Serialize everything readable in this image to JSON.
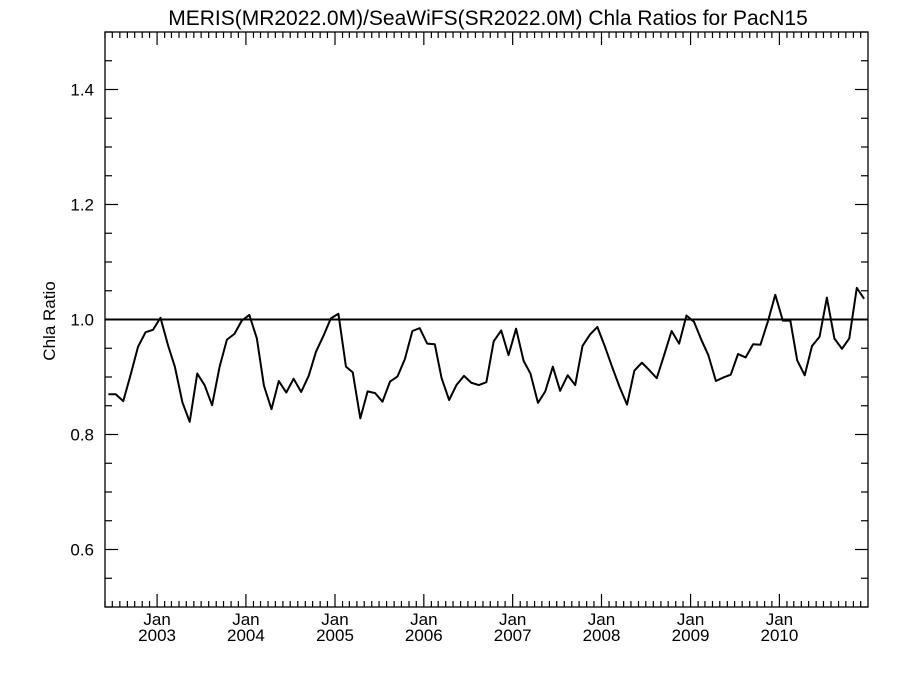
{
  "chart_data": {
    "type": "line",
    "title": "MERIS(MR2022.0M)/SeaWiFS(SR2022.0M)  Chla Ratios for PacN15",
    "xlabel": "",
    "ylabel": "Chla Ratio",
    "xlim": [
      "2002-06-01",
      "2010-12-31"
    ],
    "ylim": [
      0.5,
      1.5
    ],
    "y_ticks": [
      0.6,
      0.8,
      1.0,
      1.2,
      1.4
    ],
    "y_tick_labels": [
      "0.6",
      "0.8",
      "1.0",
      "1.2",
      "1.4"
    ],
    "x_ticks": [
      {
        "date": "2003-01-01",
        "month": "Jan",
        "year": "2003"
      },
      {
        "date": "2004-01-01",
        "month": "Jan",
        "year": "2004"
      },
      {
        "date": "2005-01-01",
        "month": "Jan",
        "year": "2005"
      },
      {
        "date": "2006-01-01",
        "month": "Jan",
        "year": "2006"
      },
      {
        "date": "2007-01-01",
        "month": "Jan",
        "year": "2007"
      },
      {
        "date": "2008-01-01",
        "month": "Jan",
        "year": "2008"
      },
      {
        "date": "2009-01-01",
        "month": "Jan",
        "year": "2009"
      },
      {
        "date": "2010-01-01",
        "month": "Jan",
        "year": "2010"
      }
    ],
    "reference_line": 1.0,
    "grid": false,
    "series": [
      {
        "color": "#000000",
        "x": [
          "2002-06",
          "2002-07",
          "2002-08",
          "2002-09",
          "2002-10",
          "2002-11",
          "2002-12",
          "2003-01",
          "2003-02",
          "2003-03",
          "2003-04",
          "2003-05",
          "2003-06",
          "2003-07",
          "2003-08",
          "2003-09",
          "2003-10",
          "2003-11",
          "2003-12",
          "2004-01",
          "2004-02",
          "2004-03",
          "2004-04",
          "2004-05",
          "2004-06",
          "2004-07",
          "2004-08",
          "2004-09",
          "2004-10",
          "2004-11",
          "2004-12",
          "2005-01",
          "2005-02",
          "2005-03",
          "2005-04",
          "2005-05",
          "2005-06",
          "2005-07",
          "2005-08",
          "2005-09",
          "2005-10",
          "2005-11",
          "2005-12",
          "2006-01",
          "2006-02",
          "2006-03",
          "2006-04",
          "2006-05",
          "2006-06",
          "2006-07",
          "2006-08",
          "2006-09",
          "2006-10",
          "2006-11",
          "2006-12",
          "2007-01",
          "2007-02",
          "2007-03",
          "2007-04",
          "2007-05",
          "2007-06",
          "2007-07",
          "2007-08",
          "2007-09",
          "2007-10",
          "2007-11",
          "2007-12",
          "2008-01",
          "2008-02",
          "2008-03",
          "2008-04",
          "2008-05",
          "2008-06",
          "2008-07",
          "2008-08",
          "2008-09",
          "2008-10",
          "2008-11",
          "2008-12",
          "2009-01",
          "2009-02",
          "2009-03",
          "2009-04",
          "2009-05",
          "2009-06",
          "2009-07",
          "2009-08",
          "2009-09",
          "2009-10",
          "2009-11",
          "2009-12",
          "2010-01",
          "2010-02",
          "2010-03",
          "2010-04",
          "2010-05",
          "2010-06",
          "2010-07",
          "2010-08",
          "2010-09",
          "2010-10",
          "2010-11",
          "2010-12"
        ],
        "y": [
          0.87,
          0.87,
          0.858,
          0.905,
          0.953,
          0.978,
          0.982,
          1.003,
          0.955,
          0.918,
          0.856,
          0.822,
          0.906,
          0.886,
          0.851,
          0.918,
          0.965,
          0.975,
          0.998,
          1.008,
          0.967,
          0.885,
          0.844,
          0.893,
          0.873,
          0.897,
          0.874,
          0.902,
          0.944,
          0.972,
          1.002,
          1.01,
          0.918,
          0.908,
          0.828,
          0.875,
          0.872,
          0.857,
          0.892,
          0.901,
          0.931,
          0.98,
          0.985,
          0.958,
          0.957,
          0.898,
          0.86,
          0.886,
          0.902,
          0.89,
          0.886,
          0.891,
          0.962,
          0.981,
          0.938,
          0.984,
          0.928,
          0.906,
          0.855,
          0.875,
          0.918,
          0.876,
          0.903,
          0.886,
          0.954,
          0.974,
          0.987,
          0.953,
          0.916,
          0.883,
          0.852,
          0.911,
          0.925,
          0.912,
          0.898,
          0.939,
          0.98,
          0.958,
          1.007,
          0.996,
          0.964,
          0.938,
          0.893,
          0.899,
          0.904,
          0.94,
          0.934,
          0.957,
          0.956,
          0.997,
          1.043,
          0.998,
          0.998,
          0.929,
          0.903,
          0.954,
          0.97,
          1.038,
          0.967,
          0.949,
          0.967,
          1.055,
          1.036
        ]
      }
    ]
  }
}
